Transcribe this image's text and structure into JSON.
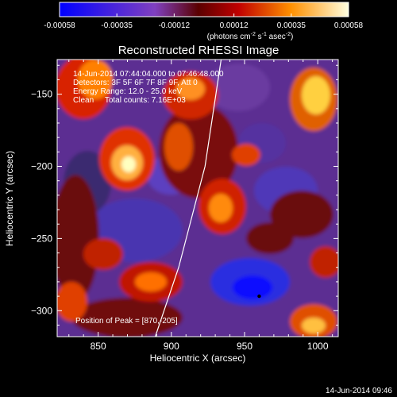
{
  "colorbar": {
    "tick_labels": [
      "-0.00058",
      "-0.00035",
      "-0.00012",
      "0.00012",
      "0.00035",
      "0.00058"
    ],
    "tick_values": [
      -0.00058,
      -0.00035,
      -0.00012,
      0.00012,
      0.00035,
      0.00058
    ],
    "range": [
      -0.00058,
      0.00058
    ],
    "units_main": "(photons cm",
    "units_sup1": "-2",
    "units_mid1": " s",
    "units_sup2": "-1",
    "units_mid2": " asec",
    "units_sup3": "-2",
    "units_end": ")"
  },
  "chart_data": {
    "type": "heatmap",
    "title": "Reconstructed RHESSI Image",
    "xlabel": "Heliocentric X (arcsec)",
    "ylabel": "Heliocentric Y (arcsec)",
    "xlim": [
      822,
      1014
    ],
    "ylim": [
      -318,
      -126
    ],
    "xticks": [
      850,
      900,
      950,
      1000
    ],
    "yticks": [
      -150,
      -200,
      -250,
      -300
    ],
    "xtick_labels": [
      "850",
      "900",
      "950",
      "1000"
    ],
    "ytick_labels": [
      "−150",
      "−200",
      "−250",
      "−300"
    ],
    "annotations": {
      "line1": "14-Jun-2014 07:44:04.000 to 07:46:48.000",
      "line2": "Detectors: 3F 5F 6F 7F 8F 9F, Att 0",
      "line3": "Energy Range: 12.0 - 25.0 keV",
      "line4": "Clean     Total counts: 7.16E+03",
      "peak": "Position of Peak = [870,-205]"
    },
    "peak_position": [
      870,
      -205
    ],
    "marked_point": [
      960,
      -290
    ],
    "limb": [
      [
        934,
        -126
      ],
      [
        923,
        -200
      ],
      [
        905,
        -270
      ],
      [
        889,
        -318
      ]
    ]
  },
  "footer": {
    "timestamp": "14-Jun-2014 09:46"
  },
  "colors": {
    "background": "#000000",
    "text": "#ffffff"
  }
}
